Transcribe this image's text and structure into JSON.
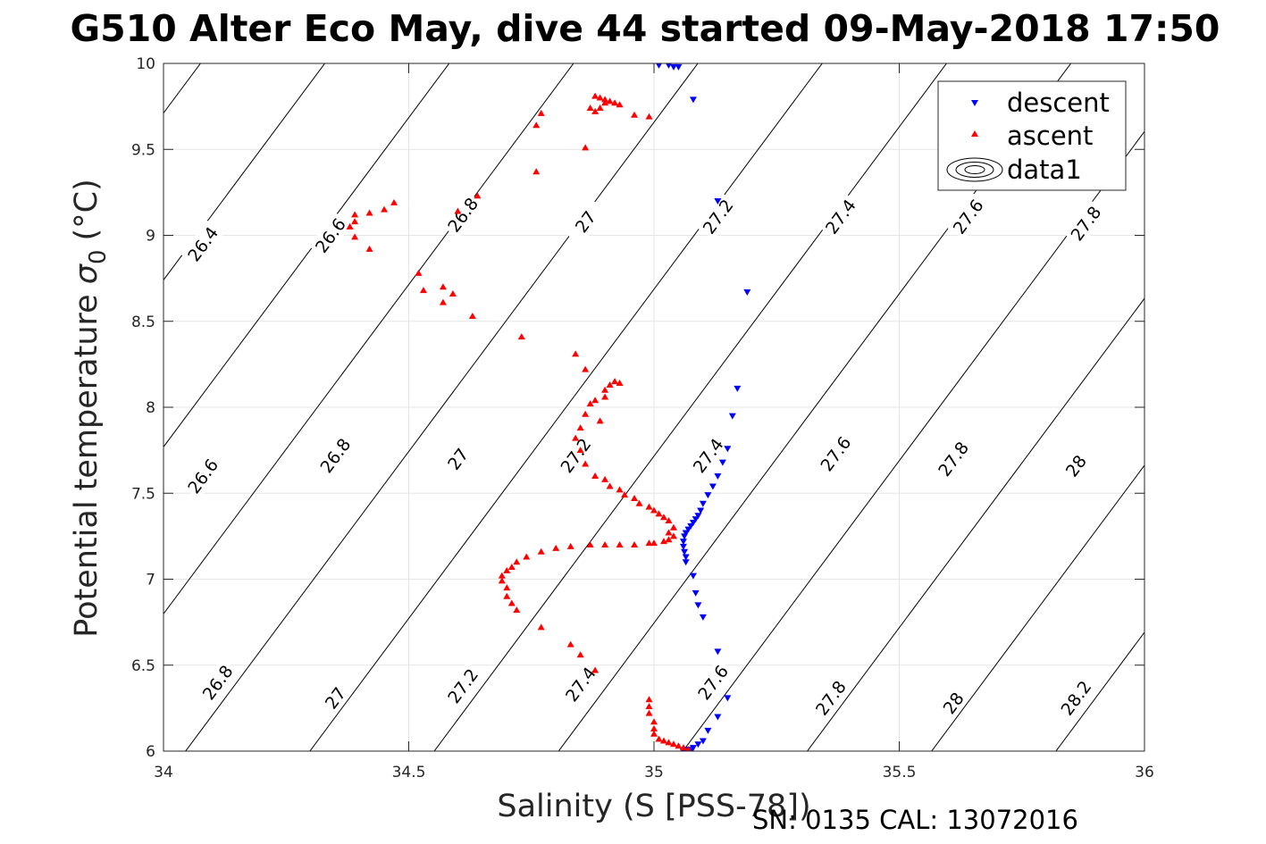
{
  "chart_data": {
    "type": "scatter",
    "title": "G510 Alter Eco May, dive 44 started 09-May-2018 17:50",
    "xlabel": "Salinity (S [PSS-78])",
    "ylabel": "Potential temperature",
    "ylabel_symbol": "σ",
    "ylabel_subscript": "0",
    "ylabel_unit": "(°C)",
    "footer": "SN: 0135  CAL: 13072016",
    "xlim": [
      34,
      36
    ],
    "ylim": [
      6,
      10
    ],
    "xticks": [
      "34",
      "34.5",
      "35",
      "35.5",
      "36"
    ],
    "yticks": [
      "6",
      "6.5",
      "7",
      "7.5",
      "8",
      "8.5",
      "9",
      "9.5",
      "10"
    ],
    "grid": true,
    "legend": {
      "placement": "top-right",
      "entries": [
        "descent",
        "ascent",
        "data1"
      ]
    },
    "colors": {
      "descent": "#0000ff",
      "ascent": "#ff0000",
      "contour": "#000000"
    },
    "series": [
      {
        "name": "descent",
        "marker": "triangle-down",
        "points": [
          [
            35.01,
            9.99
          ],
          [
            35.03,
            9.99
          ],
          [
            35.04,
            9.98
          ],
          [
            35.05,
            9.98
          ],
          [
            35.08,
            9.79
          ],
          [
            35.13,
            9.2
          ],
          [
            35.19,
            8.67
          ],
          [
            35.17,
            8.11
          ],
          [
            35.16,
            7.95
          ],
          [
            35.15,
            7.76
          ],
          [
            35.14,
            7.68
          ],
          [
            35.13,
            7.6
          ],
          [
            35.12,
            7.54
          ],
          [
            35.11,
            7.49
          ],
          [
            35.1,
            7.44
          ],
          [
            35.095,
            7.4
          ],
          [
            35.09,
            7.37
          ],
          [
            35.085,
            7.35
          ],
          [
            35.08,
            7.33
          ],
          [
            35.075,
            7.31
          ],
          [
            35.07,
            7.29
          ],
          [
            35.065,
            7.27
          ],
          [
            35.062,
            7.25
          ],
          [
            35.06,
            7.22
          ],
          [
            35.06,
            7.19
          ],
          [
            35.062,
            7.16
          ],
          [
            35.065,
            7.13
          ],
          [
            35.065,
            7.1
          ],
          [
            35.08,
            7.02
          ],
          [
            35.085,
            6.92
          ],
          [
            35.09,
            6.85
          ],
          [
            35.1,
            6.78
          ],
          [
            35.13,
            6.58
          ],
          [
            35.15,
            6.31
          ],
          [
            35.13,
            6.2
          ],
          [
            35.11,
            6.12
          ],
          [
            35.1,
            6.06
          ],
          [
            35.09,
            6.04
          ],
          [
            35.08,
            6.02
          ],
          [
            35.07,
            6.01
          ],
          [
            35.06,
            6.0
          ],
          [
            35.075,
            6.0
          ]
        ]
      },
      {
        "name": "ascent",
        "marker": "triangle-up",
        "points": [
          [
            34.88,
            9.81
          ],
          [
            34.89,
            9.8
          ],
          [
            34.9,
            9.79
          ],
          [
            34.91,
            9.78
          ],
          [
            34.92,
            9.77
          ],
          [
            34.93,
            9.76
          ],
          [
            34.87,
            9.74
          ],
          [
            34.88,
            9.72
          ],
          [
            34.89,
            9.74
          ],
          [
            34.9,
            9.77
          ],
          [
            34.96,
            9.7
          ],
          [
            34.99,
            9.69
          ],
          [
            34.77,
            9.71
          ],
          [
            34.76,
            9.64
          ],
          [
            34.86,
            9.51
          ],
          [
            34.76,
            9.37
          ],
          [
            34.64,
            9.23
          ],
          [
            34.47,
            9.19
          ],
          [
            34.45,
            9.15
          ],
          [
            34.6,
            9.14
          ],
          [
            34.39,
            9.12
          ],
          [
            34.42,
            9.13
          ],
          [
            34.39,
            9.08
          ],
          [
            34.38,
            9.05
          ],
          [
            34.39,
            8.99
          ],
          [
            34.42,
            8.92
          ],
          [
            34.52,
            8.78
          ],
          [
            34.53,
            8.68
          ],
          [
            34.57,
            8.7
          ],
          [
            34.59,
            8.66
          ],
          [
            34.57,
            8.61
          ],
          [
            34.63,
            8.53
          ],
          [
            34.73,
            8.41
          ],
          [
            34.84,
            8.31
          ],
          [
            34.86,
            8.22
          ],
          [
            34.92,
            8.15
          ],
          [
            34.93,
            8.14
          ],
          [
            34.91,
            8.13
          ],
          [
            34.9,
            8.1
          ],
          [
            34.9,
            8.06
          ],
          [
            34.88,
            8.04
          ],
          [
            34.87,
            8.02
          ],
          [
            34.86,
            7.96
          ],
          [
            34.89,
            7.92
          ],
          [
            34.85,
            7.88
          ],
          [
            34.84,
            7.82
          ],
          [
            34.85,
            7.75
          ],
          [
            34.86,
            7.67
          ],
          [
            34.88,
            7.6
          ],
          [
            34.9,
            7.58
          ],
          [
            34.91,
            7.54
          ],
          [
            34.93,
            7.52
          ],
          [
            34.94,
            7.49
          ],
          [
            34.96,
            7.47
          ],
          [
            34.97,
            7.44
          ],
          [
            34.99,
            7.42
          ],
          [
            35.0,
            7.4
          ],
          [
            35.01,
            7.38
          ],
          [
            35.02,
            7.36
          ],
          [
            35.03,
            7.34
          ],
          [
            35.04,
            7.3
          ],
          [
            35.03,
            7.27
          ],
          [
            35.04,
            7.25
          ],
          [
            35.03,
            7.23
          ],
          [
            35.02,
            7.22
          ],
          [
            35.0,
            7.21
          ],
          [
            34.99,
            7.21
          ],
          [
            34.96,
            7.2
          ],
          [
            34.93,
            7.2
          ],
          [
            34.9,
            7.2
          ],
          [
            34.87,
            7.2
          ],
          [
            34.83,
            7.19
          ],
          [
            34.8,
            7.18
          ],
          [
            34.77,
            7.16
          ],
          [
            34.74,
            7.13
          ],
          [
            34.72,
            7.1
          ],
          [
            34.71,
            7.07
          ],
          [
            34.7,
            7.05
          ],
          [
            34.69,
            7.02
          ],
          [
            34.69,
            6.99
          ],
          [
            34.7,
            6.95
          ],
          [
            34.7,
            6.9
          ],
          [
            34.71,
            6.86
          ],
          [
            34.72,
            6.82
          ],
          [
            34.77,
            6.72
          ],
          [
            34.83,
            6.62
          ],
          [
            34.85,
            6.56
          ],
          [
            34.88,
            6.47
          ],
          [
            34.99,
            6.3
          ],
          [
            34.99,
            6.26
          ],
          [
            34.99,
            6.22
          ],
          [
            35.0,
            6.17
          ],
          [
            35.0,
            6.13
          ],
          [
            35.0,
            6.1
          ],
          [
            35.01,
            6.07
          ],
          [
            35.02,
            6.06
          ],
          [
            35.03,
            6.05
          ],
          [
            35.04,
            6.04
          ],
          [
            35.05,
            6.03
          ],
          [
            35.06,
            6.02
          ],
          [
            35.07,
            6.01
          ]
        ]
      }
    ],
    "contours": {
      "name": "data1",
      "levels": [
        26.4,
        26.6,
        26.8,
        27,
        27.2,
        27.4,
        27.6,
        27.8,
        28,
        28.2
      ],
      "labels": [
        {
          "text": "26.4",
          "x": 34.08,
          "y": 8.95
        },
        {
          "text": "26.6",
          "x": 34.34,
          "y": 9.0
        },
        {
          "text": "26.8",
          "x": 34.61,
          "y": 9.12
        },
        {
          "text": "27",
          "x": 34.86,
          "y": 9.08
        },
        {
          "text": "27.2",
          "x": 35.13,
          "y": 9.11
        },
        {
          "text": "27.4",
          "x": 35.38,
          "y": 9.11
        },
        {
          "text": "27.6",
          "x": 35.64,
          "y": 9.11
        },
        {
          "text": "27.8",
          "x": 35.88,
          "y": 9.07
        },
        {
          "text": "26.6",
          "x": 34.08,
          "y": 7.6
        },
        {
          "text": "26.8",
          "x": 34.35,
          "y": 7.72
        },
        {
          "text": "27",
          "x": 34.6,
          "y": 7.7
        },
        {
          "text": "27.2",
          "x": 34.84,
          "y": 7.72
        },
        {
          "text": "27.4",
          "x": 35.11,
          "y": 7.72
        },
        {
          "text": "27.6",
          "x": 35.37,
          "y": 7.73
        },
        {
          "text": "27.8",
          "x": 35.61,
          "y": 7.7
        },
        {
          "text": "28",
          "x": 35.86,
          "y": 7.66
        },
        {
          "text": "26.8",
          "x": 34.11,
          "y": 6.4
        },
        {
          "text": "27",
          "x": 34.35,
          "y": 6.31
        },
        {
          "text": "27.2",
          "x": 34.61,
          "y": 6.38
        },
        {
          "text": "27.4",
          "x": 34.85,
          "y": 6.39
        },
        {
          "text": "27.6",
          "x": 35.12,
          "y": 6.4
        },
        {
          "text": "27.8",
          "x": 35.36,
          "y": 6.31
        },
        {
          "text": "28",
          "x": 35.61,
          "y": 6.28
        },
        {
          "text": "28.2",
          "x": 35.86,
          "y": 6.31
        }
      ]
    }
  }
}
